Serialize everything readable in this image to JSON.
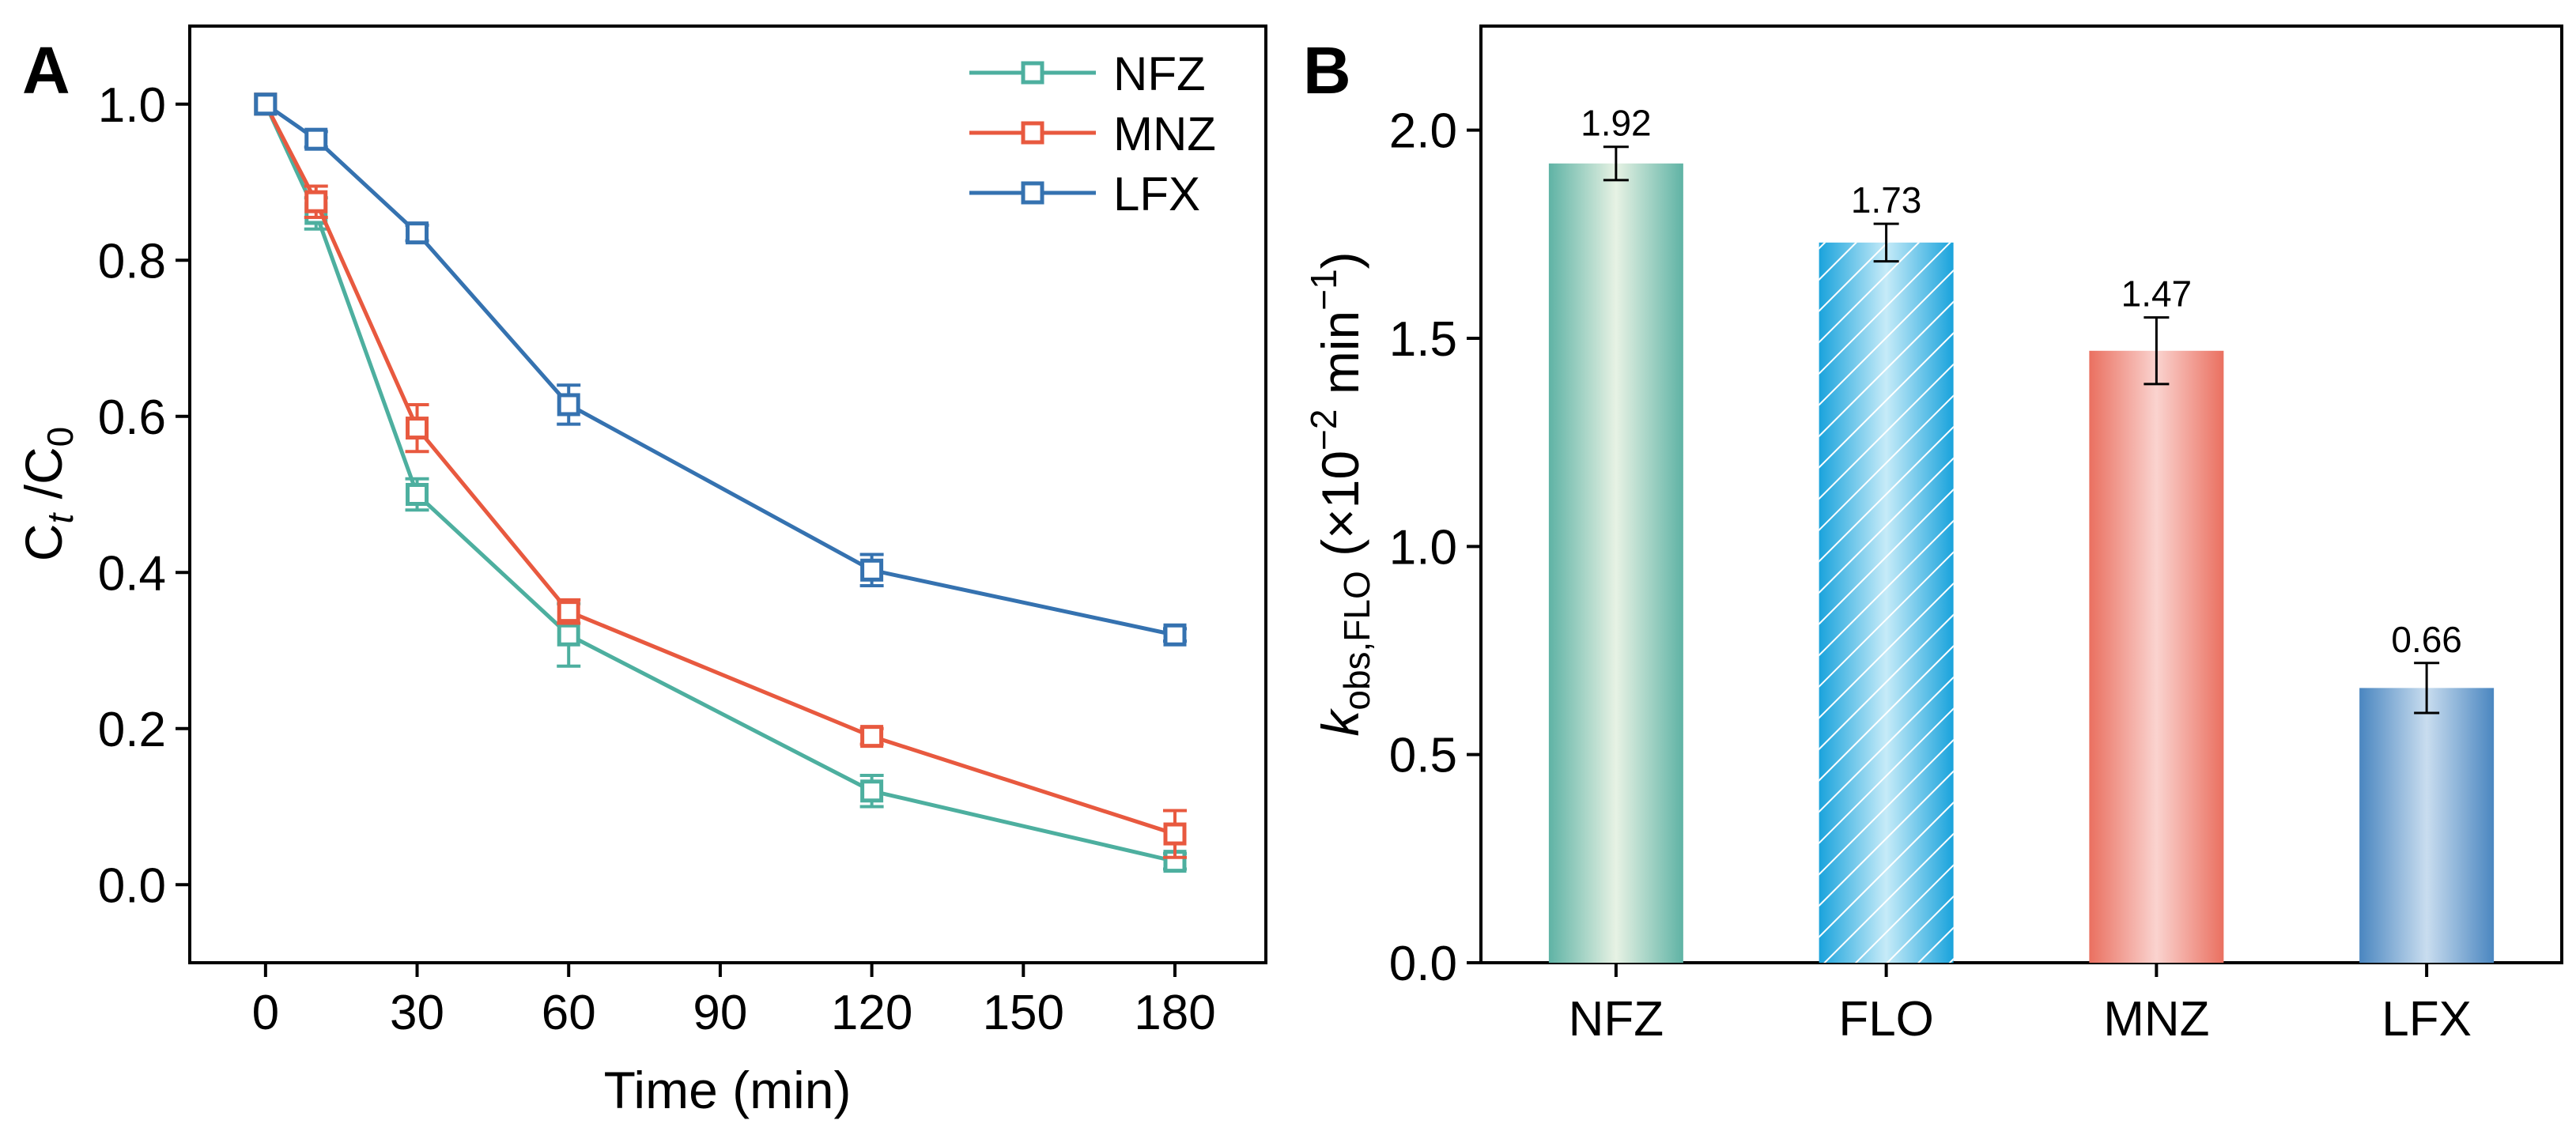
{
  "chart_data": [
    {
      "panel_label": "A",
      "type": "line",
      "x": [
        0,
        10,
        30,
        60,
        120,
        180
      ],
      "series": [
        {
          "name": "NFZ",
          "color": "#4daf9f",
          "values": [
            1.0,
            0.86,
            0.5,
            0.32,
            0.12,
            0.03
          ],
          "errors": [
            0.0,
            0.02,
            0.02,
            0.04,
            0.02,
            0.01
          ]
        },
        {
          "name": "MNZ",
          "color": "#e8593f",
          "values": [
            1.0,
            0.875,
            0.585,
            0.35,
            0.19,
            0.065
          ],
          "errors": [
            0.0,
            0.02,
            0.03,
            0.015,
            0.01,
            0.03
          ]
        },
        {
          "name": "LFX",
          "color": "#3572b0",
          "values": [
            1.0,
            0.955,
            0.835,
            0.615,
            0.403,
            0.32
          ],
          "errors": [
            0.0,
            0.01,
            0.01,
            0.025,
            0.02,
            0.008
          ]
        }
      ],
      "xlabel": "Time (min)",
      "ylabel": {
        "base": "C",
        "sub1": "t",
        "mid": " /C",
        "sub2": "0"
      },
      "xlim": [
        -15,
        198
      ],
      "ylim": [
        -0.1,
        1.1
      ],
      "xticks": [
        0,
        30,
        60,
        90,
        120,
        150,
        180
      ],
      "yticks": [
        0.0,
        0.2,
        0.4,
        0.6,
        0.8,
        1.0
      ],
      "ytick_labels": [
        "0.0",
        "0.2",
        "0.4",
        "0.6",
        "0.8",
        "1.0"
      ],
      "legend_position": "top-right",
      "grid": false
    },
    {
      "panel_label": "B",
      "type": "bar",
      "categories": [
        "NFZ",
        "FLO",
        "MNZ",
        "LFX"
      ],
      "values": [
        1.92,
        1.73,
        1.47,
        0.66
      ],
      "value_labels": [
        "1.92",
        "1.73",
        "1.47",
        "0.66"
      ],
      "errors": [
        0.04,
        0.045,
        0.08,
        0.06
      ],
      "colors": [
        "#5fb3a5",
        "#1aa3dc",
        "#ea7060",
        "#4a86c0"
      ],
      "highlight_colors": [
        "#e7f2e4",
        "#c6ebf8",
        "#fad3cf",
        "#c9ddef"
      ],
      "ylabel": {
        "k": "k",
        "sub": "obs,FLO",
        "rest": " (×10",
        "sup": "−2",
        "rest2": " min",
        "sup2": "−1",
        "close": ")"
      },
      "ylim": [
        0.0,
        2.25
      ],
      "yticks": [
        0.0,
        0.5,
        1.0,
        1.5,
        2.0
      ],
      "ytick_labels": [
        "0.0",
        "0.5",
        "1.0",
        "1.5",
        "2.0"
      ],
      "grid": false
    }
  ]
}
